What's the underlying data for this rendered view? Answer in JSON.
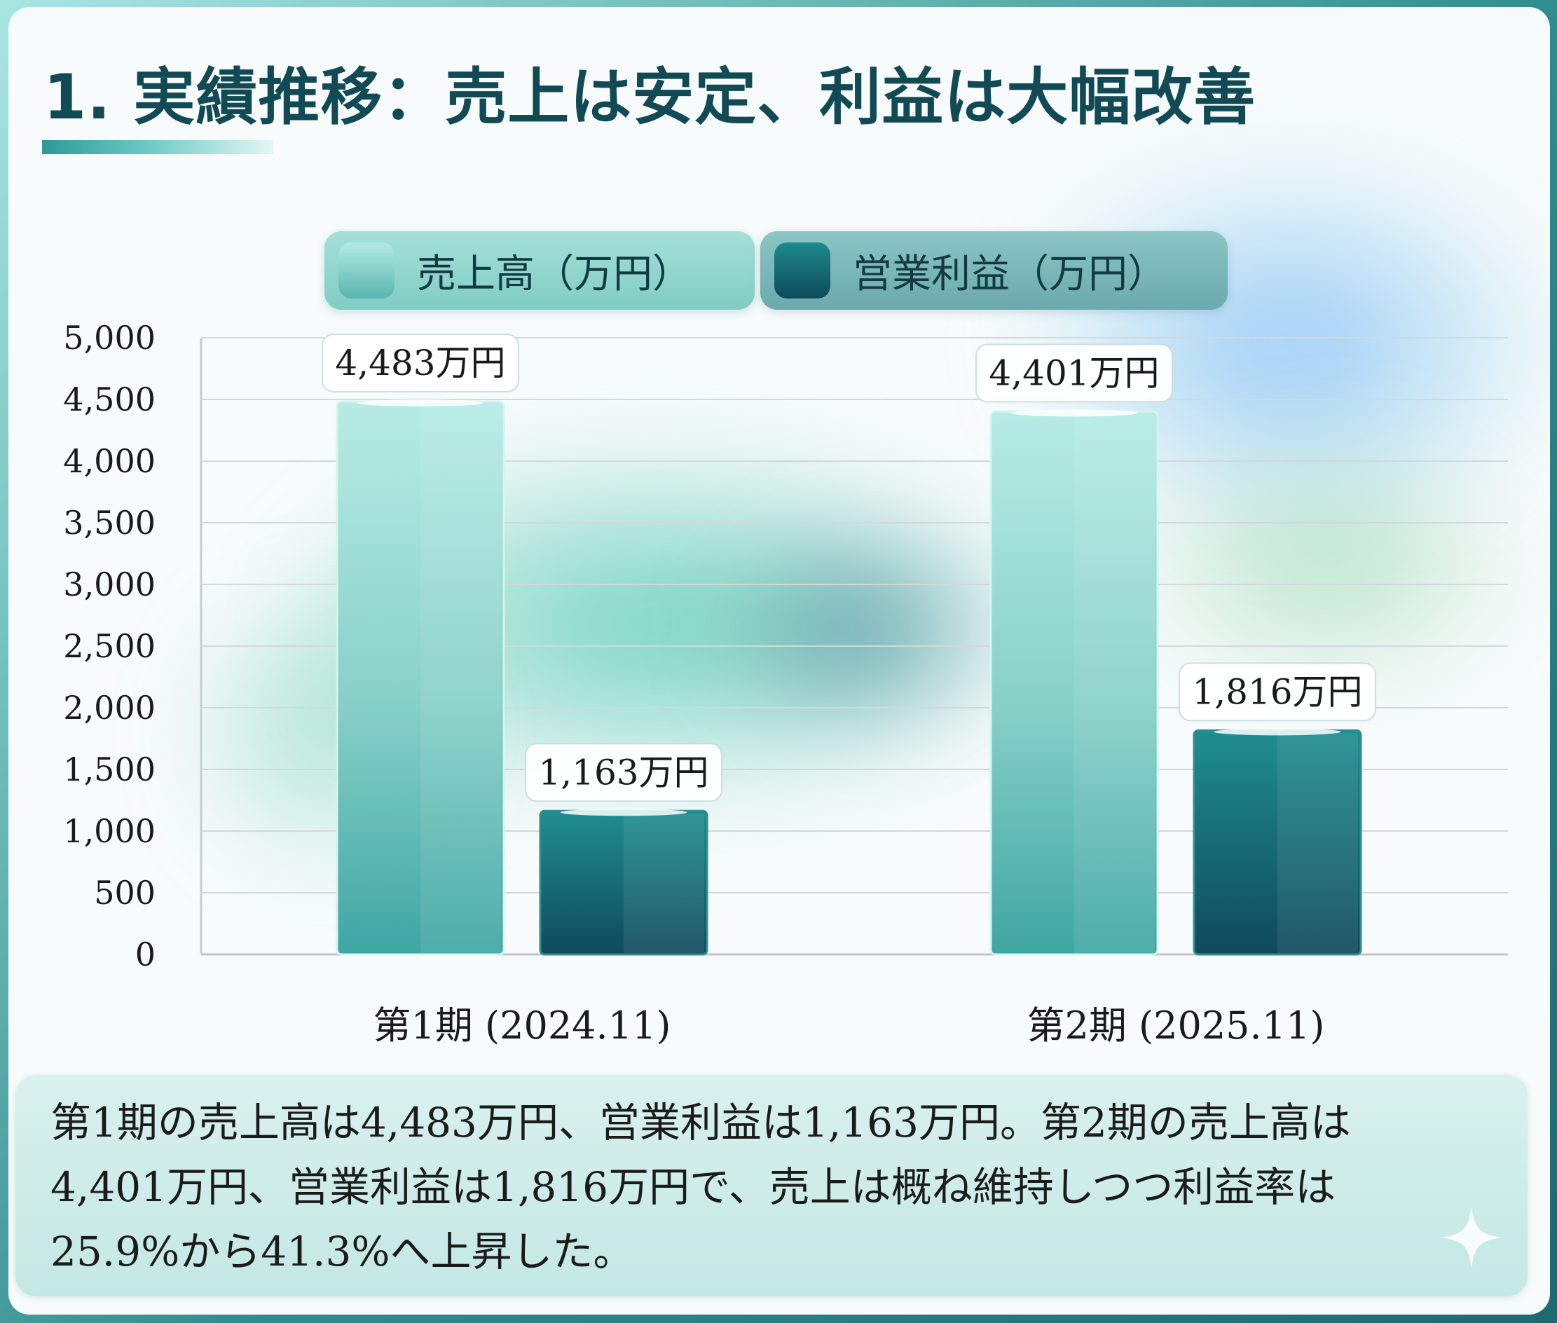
{
  "title": "1. 実績推移：売上は安定、利益は大幅改善",
  "legend": {
    "revenue": "売上高（万円）",
    "operating_profit": "営業利益（万円）"
  },
  "colors": {
    "revenue": "#7fcfc7",
    "operating_profit": "#176a76",
    "title": "#114a54"
  },
  "chart_data": {
    "type": "bar",
    "categories": [
      "第1期 (2024.11)",
      "第2期 (2025.11)"
    ],
    "series": [
      {
        "name": "売上高（万円）",
        "values": [
          4483,
          4401
        ],
        "labels": [
          "4,483万円",
          "4,401万円"
        ]
      },
      {
        "name": "営業利益（万円）",
        "values": [
          1163,
          1816
        ],
        "labels": [
          "1,163万円",
          "1,816万円"
        ]
      }
    ],
    "ylim": [
      0,
      5000
    ],
    "yticks": [
      "0",
      "500",
      "1,000",
      "1,500",
      "2,000",
      "2,500",
      "3,000",
      "3,500",
      "4,000",
      "4,500",
      "5,000"
    ],
    "ytick_values": [
      0,
      500,
      1000,
      1500,
      2000,
      2500,
      3000,
      3500,
      4000,
      4500,
      5000
    ],
    "grid": true,
    "legend_position": "top-center"
  },
  "summary": {
    "line1": "第1期の売上高は4,483万円、営業利益は1,163万円。第2期の売上高は",
    "line2": "4,401万円、営業利益は1,816万円で、売上は概ね維持しつつ利益率は",
    "line3": "25.9%から41.3%へ上昇した。"
  }
}
